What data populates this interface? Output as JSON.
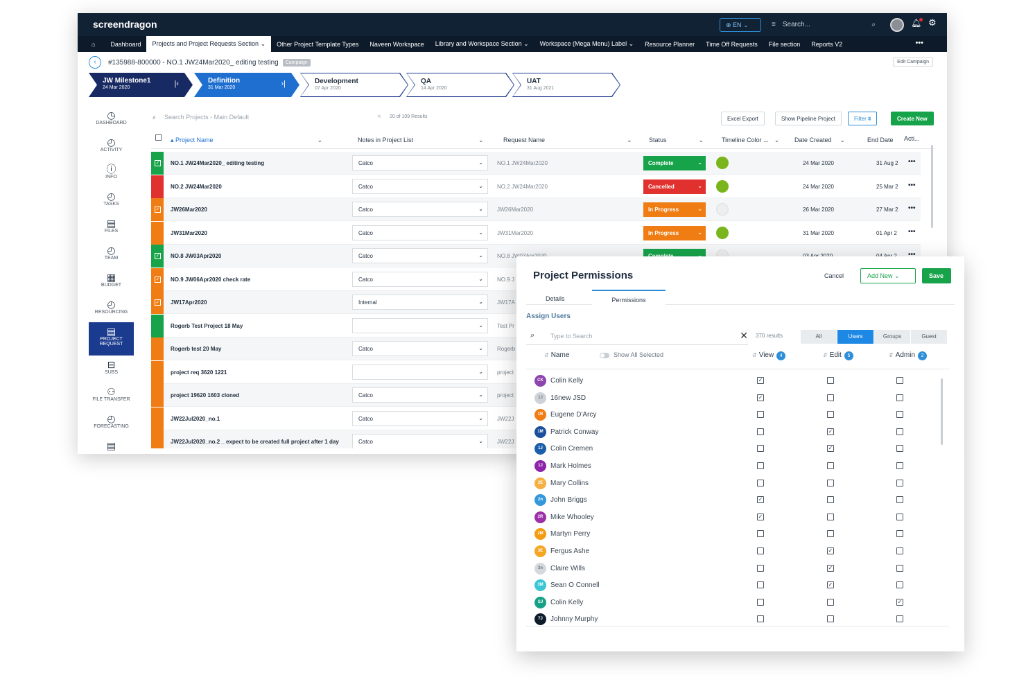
{
  "app": {
    "logo": "screendragon",
    "lang": "EN",
    "search": "Search...",
    "nav": [
      {
        "label": "Dashboard",
        "caret": ""
      },
      {
        "label": "Projects and Project Requests Section",
        "caret": "⌄",
        "active": true
      },
      {
        "label": "Other Project Template Types",
        "caret": ""
      },
      {
        "label": "Naveen Workspace",
        "caret": ""
      },
      {
        "label": "Library and Workspace Section",
        "caret": "⌄"
      },
      {
        "label": "Workspace (Mega Menu) Label",
        "caret": "⌄"
      },
      {
        "label": "Resource Planner",
        "caret": ""
      },
      {
        "label": "Time Off Requests",
        "caret": ""
      },
      {
        "label": "File section",
        "caret": ""
      },
      {
        "label": "Reports V2",
        "caret": ""
      }
    ],
    "more": "•••"
  },
  "breadcrumb": {
    "title": "#135988-800000 - NO.1 JW24Mar2020_ editing testing",
    "tag": "Campaign",
    "edit": "Edit Campaign"
  },
  "milestones": [
    {
      "name": "JW Milestone1",
      "date": "24 Mar 2020",
      "icon": "|‹",
      "style": "navy"
    },
    {
      "name": "Definition",
      "date": "31 Mar 2020",
      "icon": "›|",
      "style": "blue"
    },
    {
      "name": "Development",
      "date": "07 Apr 2020",
      "style": "outline"
    },
    {
      "name": "QA",
      "date": "14 Apr 2020",
      "style": "outline"
    },
    {
      "name": "UAT",
      "date": "31 Aug 2021",
      "style": "outline"
    }
  ],
  "sidenav": [
    {
      "label": "DASHBOARD",
      "icon": "◷"
    },
    {
      "label": "ACTIVITY",
      "icon": "◴"
    },
    {
      "label": "INFO",
      "icon": "ⓘ"
    },
    {
      "label": "TASKS",
      "icon": "◴"
    },
    {
      "label": "FILES",
      "icon": "▤"
    },
    {
      "label": "TEAM",
      "icon": "◴"
    },
    {
      "label": "BUDGET",
      "icon": "▦"
    },
    {
      "label": "RESOURCING",
      "icon": "◴"
    },
    {
      "label": "PROJECT REQUEST",
      "icon": "▤",
      "active": true
    },
    {
      "label": "SUBS",
      "icon": "⊟"
    },
    {
      "label": "FILE TRANSFER",
      "icon": "⚇"
    },
    {
      "label": "FORECASTING",
      "icon": "◴"
    },
    {
      "label": "",
      "icon": "▤"
    }
  ],
  "toolbar": {
    "search_placeholder": "Search  Projects - Main Default",
    "results": "20 of 109 Results",
    "excel": "Excel Export",
    "pipeline": "Show Pipeline Project",
    "filter": "Filter",
    "create": "Create New"
  },
  "columns": {
    "project": "Project Name",
    "notes": "Notes in Project List",
    "request": "Request Name",
    "status": "Status",
    "timeline": "Timeline Color ...",
    "created": "Date Created",
    "end": "End Date",
    "actions": "Acti..."
  },
  "rows": [
    {
      "name": "NO.1 JW24Mar2020_ editing testing",
      "stripe": "#17a34a",
      "checked": true,
      "note": "Catco",
      "request": "NO.1 JW24Mar2020",
      "status": "Complete",
      "status_color": "#17a34a",
      "timeline": "#7ab51d",
      "created": "24 Mar 2020",
      "end": "31 Aug 2"
    },
    {
      "name": "NO.2 JW24Mar2020",
      "stripe": "#e0312f",
      "checked": false,
      "note": "Catco",
      "request": "NO.2 JW24Mar2020",
      "status": "Cancelled",
      "status_color": "#e0312f",
      "timeline": "#7ab51d",
      "created": "24 Mar 2020",
      "end": "25 Mar 2"
    },
    {
      "name": "JW26Mar2020",
      "stripe": "#f07d14",
      "checked": true,
      "note": "Catco",
      "request": "JW26Mar2020",
      "status": "In Progress",
      "status_color": "#f07d14",
      "timeline": "#eeeeee",
      "created": "26 Mar 2020",
      "end": "27 Mar 2"
    },
    {
      "name": "JW31Mar2020",
      "stripe": "#f07d14",
      "checked": false,
      "note": "Catco",
      "request": "JW31Mar2020",
      "status": "In Progress",
      "status_color": "#f07d14",
      "timeline": "#7ab51d",
      "created": "31 Mar 2020",
      "end": "01 Apr 2"
    },
    {
      "name": "NO.8 JW03Apr2020",
      "stripe": "#17a34a",
      "checked": true,
      "note": "Catco",
      "request": "NO.8 JW03Apr2020",
      "status": "Complete",
      "status_color": "#17a34a",
      "timeline": "#eeeeee",
      "created": "03 Apr 2020",
      "end": "04 Apr 2"
    },
    {
      "name": "NO.9 JW06Apr2020 check rate",
      "stripe": "#f07d14",
      "checked": true,
      "note": "Catco",
      "request": "NO.9 J",
      "created": "",
      "end": ""
    },
    {
      "name": "JW17Apr2020",
      "stripe": "#f07d14",
      "checked": true,
      "note": "Internal",
      "request": "JW17A",
      "created": "",
      "end": ""
    },
    {
      "name": "Rogerb Test Project 18 May",
      "stripe": "#17a34a",
      "checked": false,
      "note": "",
      "request": "Test Pr",
      "created": "",
      "end": ""
    },
    {
      "name": "Rogerb test 20 May",
      "stripe": "#f07d14",
      "checked": false,
      "note": "Catco",
      "request": "Rogerb",
      "created": "",
      "end": ""
    },
    {
      "name": "project req 3620 1221",
      "stripe": "#f07d14",
      "checked": false,
      "note": "",
      "request": "project",
      "created": "",
      "end": ""
    },
    {
      "name": "project 19620 1603 cloned",
      "stripe": "#f07d14",
      "checked": false,
      "note": "Catco",
      "request": "project",
      "created": "",
      "end": ""
    },
    {
      "name": "JW22Jul2020_no.1",
      "stripe": "#f07d14",
      "checked": false,
      "note": "Catco",
      "request": "JW22J",
      "created": "",
      "end": ""
    },
    {
      "name": "JW22Jul2020_no.2 _ expect to be created full project after 1 day",
      "stripe": "#f07d14",
      "checked": false,
      "note": "Catco",
      "request": "JW22J",
      "created": "",
      "end": ""
    }
  ],
  "panel": {
    "title": "Project Permissions",
    "cancel": "Cancel",
    "add_new": "Add New",
    "save": "Save",
    "tab_details": "Details",
    "tab_permissions": "Permissions",
    "assign": "Assign Users",
    "search_placeholder": "Type to Search",
    "results": "370 results",
    "segments": [
      "All",
      "Users",
      "Groups",
      "Guest"
    ],
    "active_segment": "Users",
    "col_name": "Name",
    "show_all": "Show All Selected",
    "col_view": "View",
    "view_count": "4",
    "col_edit": "Edit",
    "edit_count": "5",
    "col_admin": "Admin",
    "admin_count": "2",
    "users": [
      {
        "initials": "CK",
        "name": "Colin Kelly",
        "color": "#8e44ad",
        "view": true,
        "edit": false,
        "admin": false
      },
      {
        "initials": "1J",
        "name": "16new JSD",
        "color": "#cfd3d7",
        "view": true,
        "edit": false,
        "admin": false
      },
      {
        "initials": "1R",
        "name": "Eugene D'Arcy",
        "color": "#f07d14",
        "view": false,
        "edit": false,
        "admin": false
      },
      {
        "initials": "1M",
        "name": "Patrick Conway",
        "color": "#1b4f9b",
        "view": false,
        "edit": true,
        "admin": false
      },
      {
        "initials": "1J",
        "name": "Colin Cremen",
        "color": "#1b5fab",
        "view": false,
        "edit": true,
        "admin": false
      },
      {
        "initials": "1J",
        "name": "Mark Holmes",
        "color": "#8e24aa",
        "view": false,
        "edit": false,
        "admin": false
      },
      {
        "initials": "2E",
        "name": "Mary Collins",
        "color": "#f5b041",
        "view": false,
        "edit": false,
        "admin": false
      },
      {
        "initials": "2n",
        "name": "John Briggs",
        "color": "#3498db",
        "view": true,
        "edit": false,
        "admin": false
      },
      {
        "initials": "2R",
        "name": "Mike Whooley",
        "color": "#9b30a8",
        "view": true,
        "edit": false,
        "admin": false
      },
      {
        "initials": "2M",
        "name": "Martyn Perry",
        "color": "#f39c12",
        "view": false,
        "edit": false,
        "admin": false
      },
      {
        "initials": "3E",
        "name": "Fergus Ashe",
        "color": "#f5a623",
        "view": false,
        "edit": true,
        "admin": false
      },
      {
        "initials": "3n",
        "name": "Claire Wills",
        "color": "#d5d8dc",
        "view": false,
        "edit": true,
        "admin": false
      },
      {
        "initials": "3M",
        "name": "Sean O Connell",
        "color": "#3bc6d6",
        "view": false,
        "edit": true,
        "admin": false
      },
      {
        "initials": "SJ",
        "name": "Colin Kelly",
        "color": "#16a085",
        "view": false,
        "edit": false,
        "admin": true
      },
      {
        "initials": "7J",
        "name": "Johnny Murphy",
        "color": "#0d1b2a",
        "view": false,
        "edit": false,
        "admin": false
      }
    ]
  }
}
